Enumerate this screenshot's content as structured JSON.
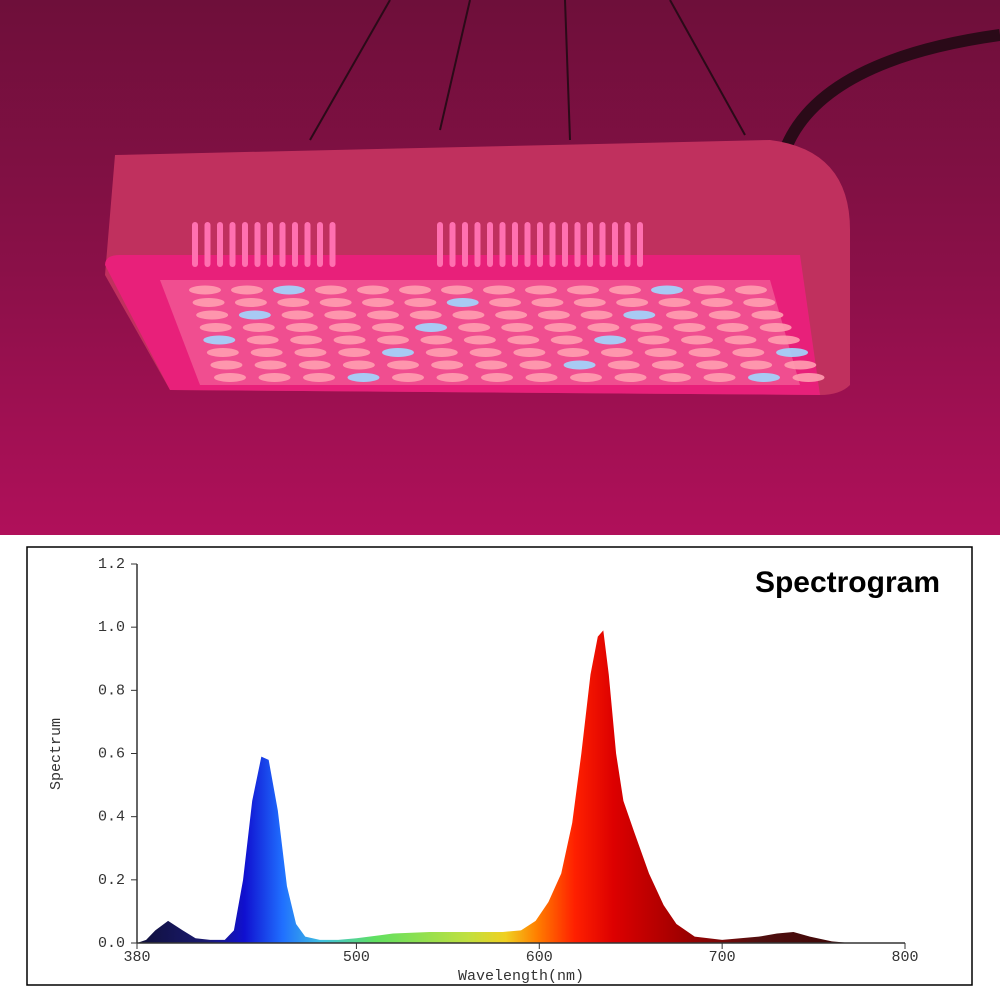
{
  "chart_data": {
    "type": "area",
    "title": "Spectrogram",
    "x_label": "Wavelength(nm)",
    "y_label": "Spectrum",
    "x": [
      380,
      385,
      390,
      397,
      405,
      412,
      420,
      428,
      433,
      438,
      443,
      448,
      452,
      457,
      462,
      467,
      472,
      480,
      490,
      500,
      520,
      540,
      560,
      580,
      590,
      598,
      605,
      612,
      618,
      623,
      628,
      632,
      635,
      638,
      642,
      646,
      652,
      660,
      668,
      675,
      685,
      700,
      720,
      730,
      739,
      748,
      760,
      770
    ],
    "series": [
      {
        "name": "Spectrum",
        "values": [
          0.0,
          0.01,
          0.04,
          0.07,
          0.04,
          0.015,
          0.01,
          0.01,
          0.04,
          0.2,
          0.45,
          0.59,
          0.58,
          0.42,
          0.18,
          0.06,
          0.02,
          0.01,
          0.01,
          0.015,
          0.03,
          0.035,
          0.035,
          0.035,
          0.04,
          0.07,
          0.13,
          0.22,
          0.38,
          0.6,
          0.85,
          0.97,
          0.99,
          0.85,
          0.6,
          0.45,
          0.35,
          0.22,
          0.12,
          0.06,
          0.02,
          0.01,
          0.02,
          0.03,
          0.035,
          0.02,
          0.005,
          0.0
        ]
      }
    ],
    "xlim": [
      380,
      800
    ],
    "xticks": [
      380,
      500,
      600,
      700,
      800
    ],
    "ylim": [
      0,
      1.2
    ],
    "yticks": [
      {
        "value": 0,
        "label": "0.0"
      },
      0.2,
      0.4,
      0.6,
      0.8,
      {
        "value": 1,
        "label": "1.0"
      },
      1.2
    ]
  }
}
